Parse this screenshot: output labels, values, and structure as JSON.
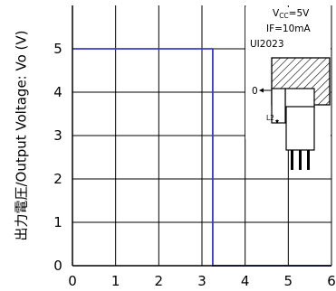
{
  "chart_data": {
    "type": "line",
    "title": "",
    "xlabel": "",
    "ylabel": "出力電圧/Output Voltage: Vo (V)",
    "xlim": [
      0,
      6
    ],
    "ylim": [
      0,
      6
    ],
    "grid": true,
    "x_ticks": [
      "0",
      "1",
      "2",
      "3",
      "4",
      "5",
      "6"
    ],
    "y_ticks": [
      "0",
      "1",
      "2",
      "3",
      "4",
      "5"
    ],
    "series": [
      {
        "x": [
          0,
          3.25,
          3.25,
          6
        ],
        "y": [
          5,
          5,
          0,
          0
        ],
        "color": "#3a3ad0"
      }
    ],
    "annotations": {
      "vcc": "Vcc=5V",
      "if": "IF=10mA",
      "model": "UI2023",
      "zero_marker": "0",
      "l2_marker": "L2"
    }
  }
}
